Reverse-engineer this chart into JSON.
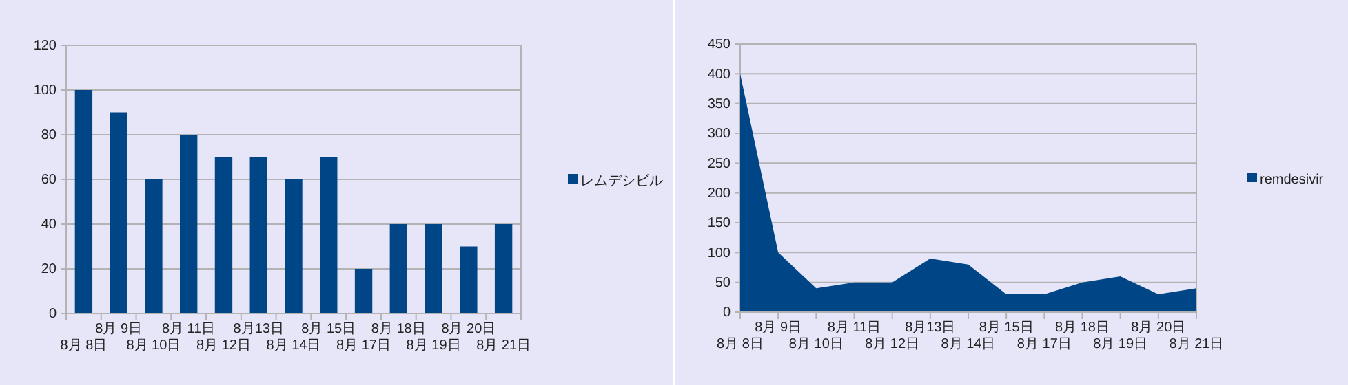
{
  "chart_data": [
    {
      "type": "bar",
      "categories": [
        "8月 8日",
        "8月 9日",
        "8月 10日",
        "8月 11日",
        "8月 12日",
        "8月13日",
        "8月 14日",
        "8月 15日",
        "8月 17日",
        "8月 18日",
        "8月 19日",
        "8月 20日",
        "8月 21日"
      ],
      "series": [
        {
          "name": "レムデシビル",
          "color": "#004586",
          "values": [
            100,
            90,
            60,
            80,
            70,
            70,
            60,
            70,
            20,
            40,
            40,
            30,
            40
          ]
        }
      ],
      "ylim": [
        0,
        120
      ],
      "yticks": [
        0,
        20,
        40,
        60,
        80,
        100,
        120
      ],
      "grid": "y",
      "legend": "right"
    },
    {
      "type": "area",
      "categories": [
        "8月 8日",
        "8月 9日",
        "8月 10日",
        "8月 11日",
        "8月 12日",
        "8月13日",
        "8月 14日",
        "8月 15日",
        "8月 17日",
        "8月 18日",
        "8月 19日",
        "8月 20日",
        "8月 21日"
      ],
      "series": [
        {
          "name": "remdesivir",
          "color": "#004586",
          "values": [
            400,
            100,
            40,
            50,
            50,
            90,
            80,
            30,
            30,
            50,
            60,
            30,
            40
          ]
        }
      ],
      "ylim": [
        0,
        450
      ],
      "yticks": [
        0,
        50,
        100,
        150,
        200,
        250,
        300,
        350,
        400,
        450
      ],
      "grid": "y",
      "legend": "right"
    }
  ]
}
